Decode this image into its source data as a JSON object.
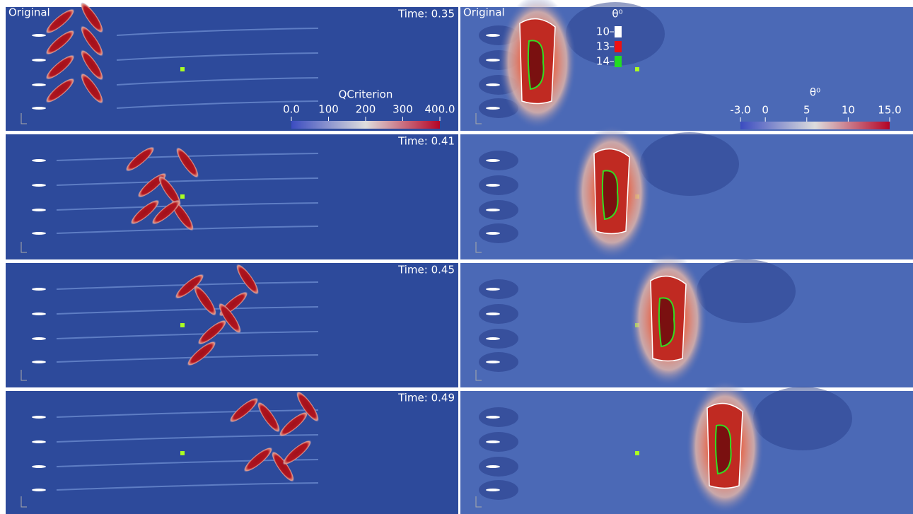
{
  "panels": {
    "label": "Original",
    "times": [
      "Time: 0.35",
      "Time: 0.41",
      "Time: 0.45",
      "Time: 0.49"
    ]
  },
  "qcriterion_colorbar": {
    "title": "QCriterion",
    "range": [
      0,
      400
    ],
    "ticks": [
      {
        "value": 0,
        "label": "0.0"
      },
      100,
      200,
      300,
      {
        "value": 400,
        "label": "400.0"
      }
    ]
  },
  "theta_colorbar": {
    "title": "θ⁰",
    "range": [
      -3,
      15
    ],
    "ticks": [
      {
        "value": -3,
        "label": "-3.0"
      },
      0,
      5,
      10,
      {
        "value": 15,
        "label": "15.0"
      }
    ]
  },
  "contour_legend": {
    "title": "θ⁰",
    "levels": [
      {
        "label": "10",
        "color": "#ffffff"
      },
      {
        "label": "13",
        "color": "#ee1111"
      },
      {
        "label": "14",
        "color": "#22dd22"
      }
    ]
  }
}
